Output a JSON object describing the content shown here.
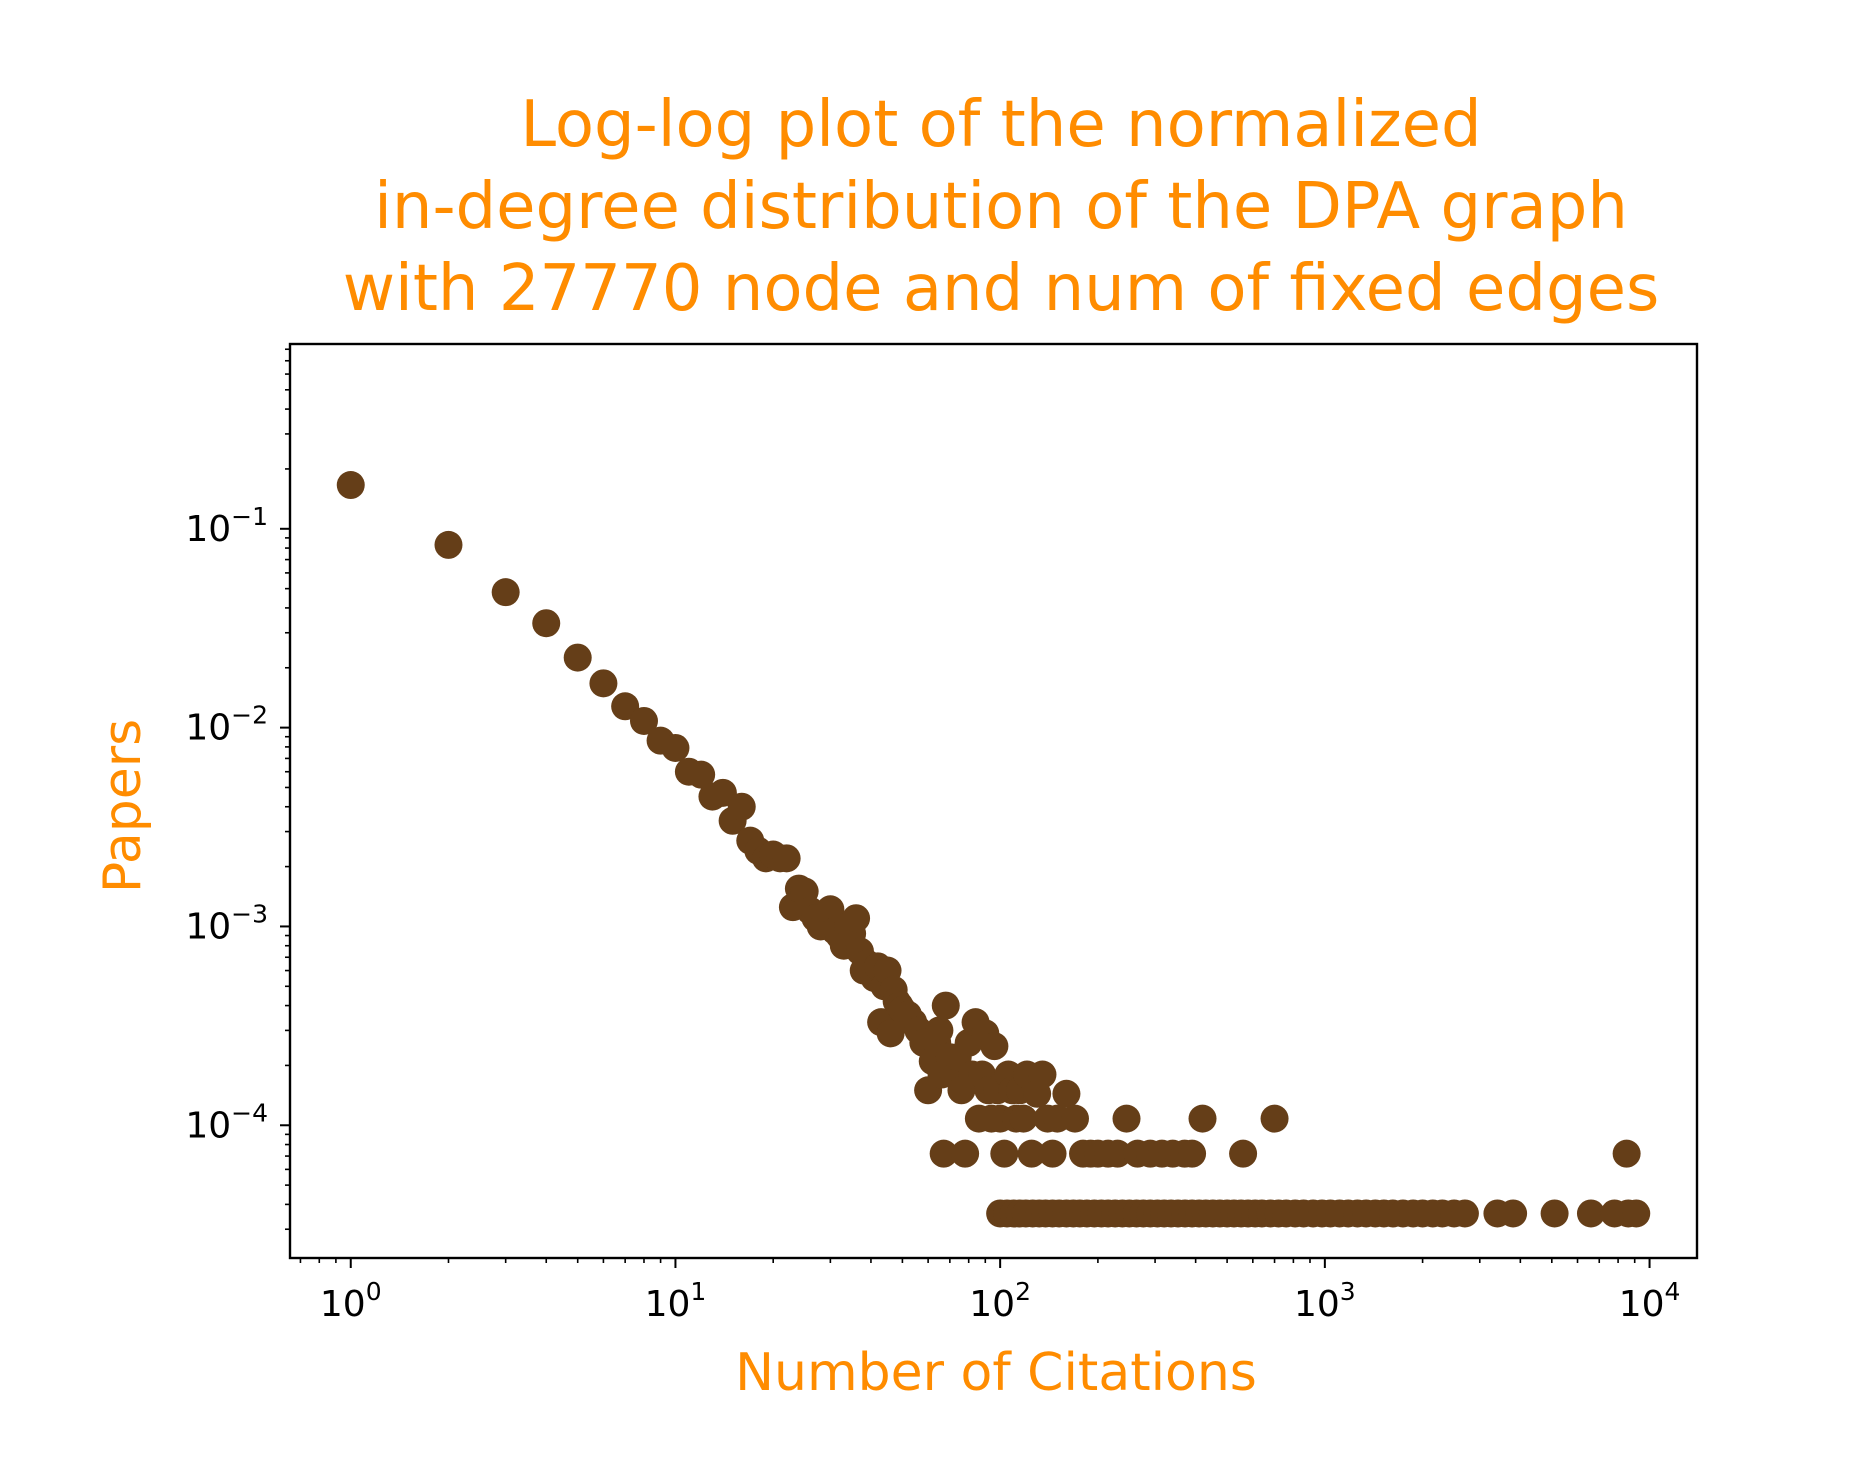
{
  "chart_data": {
    "type": "scatter",
    "title_lines": [
      "Log-log plot of the normalized",
      "in-degree distribution of the DPA graph",
      "with 27770 node and num of fixed edges"
    ],
    "xlabel": "Number of Citations",
    "ylabel": "Papers",
    "xscale": "log",
    "yscale": "log",
    "xlim": [
      0.65,
      14000
    ],
    "ylim": [
      2.15e-05,
      0.85
    ],
    "x_ticks": [
      {
        "value": 1,
        "base": "10",
        "exp": "0"
      },
      {
        "value": 10,
        "base": "10",
        "exp": "1"
      },
      {
        "value": 100,
        "base": "10",
        "exp": "2"
      },
      {
        "value": 1000,
        "base": "10",
        "exp": "3"
      },
      {
        "value": 10000,
        "base": "10",
        "exp": "4"
      }
    ],
    "y_ticks": [
      {
        "value": 0.1,
        "base": "10",
        "exp": "−1"
      },
      {
        "value": 0.01,
        "base": "10",
        "exp": "−2"
      },
      {
        "value": 0.001,
        "base": "10",
        "exp": "−3"
      },
      {
        "value": 0.0001,
        "base": "10",
        "exp": "−4"
      }
    ],
    "grid": false,
    "colors": {
      "marker": "#653e18",
      "title": "#ff8c00",
      "axis_labels": "#ff8c00",
      "frame": "#000000"
    },
    "points": [
      [
        1,
        0.166
      ],
      [
        2,
        0.083
      ],
      [
        3,
        0.048
      ],
      [
        4,
        0.0335
      ],
      [
        5,
        0.0225
      ],
      [
        6,
        0.0167
      ],
      [
        7,
        0.0128
      ],
      [
        8,
        0.0108
      ],
      [
        9,
        0.0086
      ],
      [
        10,
        0.0079
      ],
      [
        11,
        0.006
      ],
      [
        12,
        0.0058
      ],
      [
        13,
        0.0045
      ],
      [
        14,
        0.0047
      ],
      [
        15,
        0.0034
      ],
      [
        16,
        0.004
      ],
      [
        17,
        0.0027
      ],
      [
        18,
        0.0024
      ],
      [
        19,
        0.0022
      ],
      [
        20,
        0.0023
      ],
      [
        21,
        0.0022
      ],
      [
        22,
        0.0022
      ],
      [
        23,
        0.00125
      ],
      [
        24,
        0.00155
      ],
      [
        25,
        0.0015
      ],
      [
        26,
        0.0012
      ],
      [
        27,
        0.0011
      ],
      [
        28,
        0.001
      ],
      [
        29,
        0.0011
      ],
      [
        30,
        0.00122
      ],
      [
        31,
        0.00095
      ],
      [
        32,
        0.0009
      ],
      [
        33,
        0.0008
      ],
      [
        34,
        0.001
      ],
      [
        35,
        0.00092
      ],
      [
        36,
        0.0011
      ],
      [
        37,
        0.00075
      ],
      [
        38,
        0.0006
      ],
      [
        39,
        0.00065
      ],
      [
        40,
        0.0006
      ],
      [
        41,
        0.00055
      ],
      [
        42,
        0.00063
      ],
      [
        43,
        0.00033
      ],
      [
        44,
        0.0005
      ],
      [
        45,
        0.0006
      ],
      [
        46,
        0.00029
      ],
      [
        47,
        0.00048
      ],
      [
        48,
        0.00042
      ],
      [
        49,
        0.0004
      ],
      [
        50,
        0.00038
      ],
      [
        52,
        0.00036
      ],
      [
        54,
        0.00033
      ],
      [
        56,
        0.0003
      ],
      [
        58,
        0.00026
      ],
      [
        60,
        0.00015
      ],
      [
        62,
        0.00021
      ],
      [
        64,
        0.00026
      ],
      [
        65,
        0.0003
      ],
      [
        66,
        0.00018
      ],
      [
        67,
        7.2e-05
      ],
      [
        68,
        0.0004
      ],
      [
        70,
        0.00022
      ],
      [
        72,
        0.00018
      ],
      [
        74,
        0.00022
      ],
      [
        76,
        0.00015
      ],
      [
        78,
        7.2e-05
      ],
      [
        80,
        0.00026
      ],
      [
        82,
        0.00018
      ],
      [
        84,
        0.00033
      ],
      [
        86,
        0.000108
      ],
      [
        88,
        0.00018
      ],
      [
        90,
        0.00029
      ],
      [
        92,
        0.00015
      ],
      [
        94,
        0.000108
      ],
      [
        96,
        0.00025
      ],
      [
        98,
        0.00015
      ],
      [
        100,
        0.000108
      ],
      [
        103,
        7.2e-05
      ],
      [
        106,
        0.00018
      ],
      [
        109,
        0.00015
      ],
      [
        112,
        0.000108
      ],
      [
        115,
        0.00015
      ],
      [
        118,
        0.000108
      ],
      [
        121,
        0.00018
      ],
      [
        125,
        7.2e-05
      ],
      [
        130,
        0.000144
      ],
      [
        135,
        0.00018
      ],
      [
        140,
        0.000108
      ],
      [
        145,
        7.2e-05
      ],
      [
        150,
        0.000108
      ],
      [
        160,
        0.000144
      ],
      [
        170,
        0.000108
      ],
      [
        180,
        7.2e-05
      ],
      [
        190,
        7.2e-05
      ],
      [
        200,
        7.2e-05
      ],
      [
        215,
        7.2e-05
      ],
      [
        230,
        7.2e-05
      ],
      [
        245,
        0.000108
      ],
      [
        265,
        7.2e-05
      ],
      [
        290,
        7.2e-05
      ],
      [
        315,
        7.2e-05
      ],
      [
        340,
        7.2e-05
      ],
      [
        370,
        7.2e-05
      ],
      [
        390,
        7.2e-05
      ],
      [
        420,
        0.000108
      ],
      [
        560,
        7.2e-05
      ],
      [
        700,
        0.000108
      ],
      [
        8500,
        7.2e-05
      ],
      [
        100,
        3.6e-05
      ],
      [
        105,
        3.6e-05
      ],
      [
        110,
        3.6e-05
      ],
      [
        115,
        3.6e-05
      ],
      [
        120,
        3.6e-05
      ],
      [
        126,
        3.6e-05
      ],
      [
        132,
        3.6e-05
      ],
      [
        138,
        3.6e-05
      ],
      [
        145,
        3.6e-05
      ],
      [
        152,
        3.6e-05
      ],
      [
        160,
        3.6e-05
      ],
      [
        168,
        3.6e-05
      ],
      [
        176,
        3.6e-05
      ],
      [
        185,
        3.6e-05
      ],
      [
        195,
        3.6e-05
      ],
      [
        205,
        3.6e-05
      ],
      [
        215,
        3.6e-05
      ],
      [
        226,
        3.6e-05
      ],
      [
        238,
        3.6e-05
      ],
      [
        250,
        3.6e-05
      ],
      [
        263,
        3.6e-05
      ],
      [
        276,
        3.6e-05
      ],
      [
        290,
        3.6e-05
      ],
      [
        305,
        3.6e-05
      ],
      [
        320,
        3.6e-05
      ],
      [
        336,
        3.6e-05
      ],
      [
        353,
        3.6e-05
      ],
      [
        371,
        3.6e-05
      ],
      [
        390,
        3.6e-05
      ],
      [
        410,
        3.6e-05
      ],
      [
        430,
        3.6e-05
      ],
      [
        452,
        3.6e-05
      ],
      [
        475,
        3.6e-05
      ],
      [
        500,
        3.6e-05
      ],
      [
        525,
        3.6e-05
      ],
      [
        552,
        3.6e-05
      ],
      [
        580,
        3.6e-05
      ],
      [
        610,
        3.6e-05
      ],
      [
        640,
        3.6e-05
      ],
      [
        680,
        3.6e-05
      ],
      [
        720,
        3.6e-05
      ],
      [
        760,
        3.6e-05
      ],
      [
        810,
        3.6e-05
      ],
      [
        860,
        3.6e-05
      ],
      [
        920,
        3.6e-05
      ],
      [
        980,
        3.6e-05
      ],
      [
        1040,
        3.6e-05
      ],
      [
        1110,
        3.6e-05
      ],
      [
        1180,
        3.6e-05
      ],
      [
        1260,
        3.6e-05
      ],
      [
        1340,
        3.6e-05
      ],
      [
        1430,
        3.6e-05
      ],
      [
        1520,
        3.6e-05
      ],
      [
        1620,
        3.6e-05
      ],
      [
        1740,
        3.6e-05
      ],
      [
        1870,
        3.6e-05
      ],
      [
        2000,
        3.6e-05
      ],
      [
        2150,
        3.6e-05
      ],
      [
        2300,
        3.6e-05
      ],
      [
        2500,
        3.6e-05
      ],
      [
        2700,
        3.6e-05
      ],
      [
        3400,
        3.6e-05
      ],
      [
        3800,
        3.6e-05
      ],
      [
        5100,
        3.6e-05
      ],
      [
        6600,
        3.6e-05
      ],
      [
        7800,
        3.6e-05
      ],
      [
        8600,
        3.6e-05
      ],
      [
        9100,
        3.6e-05
      ]
    ]
  }
}
